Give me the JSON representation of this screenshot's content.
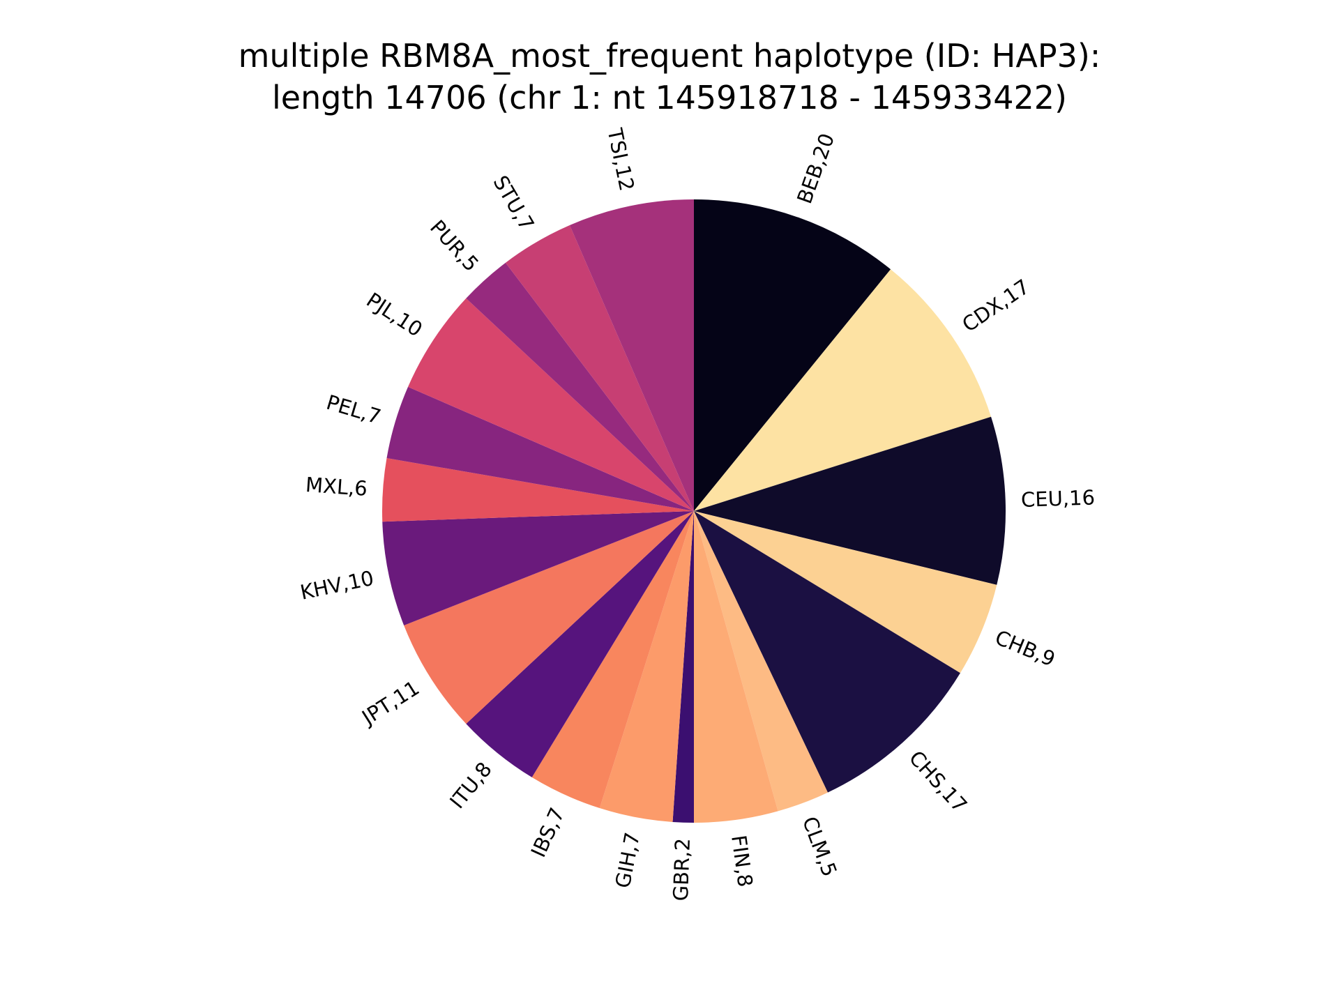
{
  "chart_data": {
    "type": "pie",
    "title_lines": [
      "multiple RBM8A_most_frequent haplotype (ID: HAP3):",
      "length 14706 (chr 1: nt 145918718 - 145933422)"
    ],
    "counterclock": false,
    "start_angle_deg": 90,
    "slices": [
      {
        "label": "BEB,20",
        "value": 20,
        "color": "#050417"
      },
      {
        "label": "CDX,17",
        "value": 17,
        "color": "#fde2a3"
      },
      {
        "label": "CEU,16",
        "value": 16,
        "color": "#0f0b2a"
      },
      {
        "label": "CHB,9",
        "value": 9,
        "color": "#fcd193"
      },
      {
        "label": "CHS,17",
        "value": 17,
        "color": "#1b1042"
      },
      {
        "label": "CLM,5",
        "value": 5,
        "color": "#fdbb84"
      },
      {
        "label": "FIN,8",
        "value": 8,
        "color": "#fdab75"
      },
      {
        "label": "GBR,2",
        "value": 2,
        "color": "#3b0f70"
      },
      {
        "label": "GIH,7",
        "value": 7,
        "color": "#fc9b6a"
      },
      {
        "label": "IBS,7",
        "value": 7,
        "color": "#f8865e"
      },
      {
        "label": "ITU,8",
        "value": 8,
        "color": "#56147d"
      },
      {
        "label": "JPT,11",
        "value": 11,
        "color": "#f4775e"
      },
      {
        "label": "KHV,10",
        "value": 10,
        "color": "#6a1a7c"
      },
      {
        "label": "MXL,6",
        "value": 6,
        "color": "#e5505d"
      },
      {
        "label": "PEL,7",
        "value": 7,
        "color": "#87257f"
      },
      {
        "label": "PJL,10",
        "value": 10,
        "color": "#d8456c"
      },
      {
        "label": "PUR,5",
        "value": 5,
        "color": "#962a7e"
      },
      {
        "label": "STU,7",
        "value": 7,
        "color": "#c73f73"
      },
      {
        "label": "TSI,12",
        "value": 12,
        "color": "#a5317b"
      }
    ]
  }
}
